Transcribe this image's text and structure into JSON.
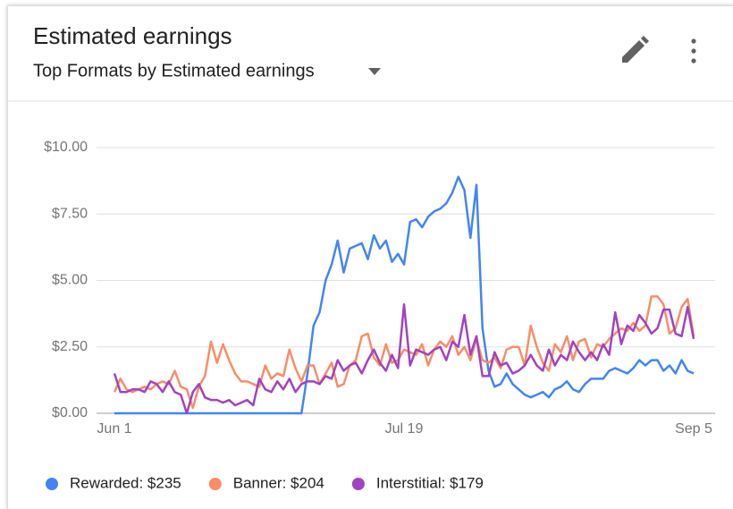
{
  "chart_data": {
    "type": "line",
    "title": "Estimated earnings",
    "subtitle": "Top Formats by Estimated earnings",
    "categories": [
      "Jun 1",
      null,
      null,
      null,
      null,
      null,
      null,
      null,
      null,
      null,
      null,
      null,
      null,
      null,
      null,
      null,
      null,
      null,
      null,
      null,
      null,
      null,
      null,
      null,
      null,
      null,
      null,
      null,
      null,
      null,
      null,
      null,
      null,
      null,
      null,
      null,
      null,
      null,
      null,
      null,
      null,
      null,
      null,
      null,
      null,
      null,
      null,
      null,
      "Jul 19",
      null,
      null,
      null,
      null,
      null,
      null,
      null,
      null,
      null,
      null,
      null,
      null,
      null,
      null,
      null,
      null,
      null,
      null,
      null,
      null,
      null,
      null,
      null,
      null,
      null,
      null,
      null,
      null,
      null,
      null,
      null,
      null,
      null,
      null,
      null,
      null,
      null,
      null,
      null,
      null,
      null,
      null,
      null,
      null,
      null,
      null,
      null,
      "Sep 5"
    ],
    "series": [
      {
        "name": "Rewarded: $235",
        "color": "#4285f4",
        "values": [
          0,
          0,
          0,
          0,
          0,
          0,
          0,
          0,
          0,
          0,
          0,
          0,
          0,
          0,
          0,
          0,
          0,
          0,
          0,
          0,
          0,
          0,
          0,
          0,
          0,
          0,
          0,
          0,
          0,
          0,
          0,
          0,
          1.5,
          3.3,
          3.8,
          5.0,
          5.6,
          6.5,
          5.3,
          6.2,
          6.3,
          6.4,
          5.8,
          6.7,
          6.2,
          6.5,
          5.7,
          6.0,
          5.6,
          7.2,
          7.3,
          7.0,
          7.4,
          7.6,
          7.7,
          7.9,
          8.3,
          8.9,
          8.4,
          6.6,
          8.6,
          3.2,
          1.6,
          1.0,
          1.1,
          1.5,
          1.1,
          0.9,
          0.7,
          0.6,
          0.7,
          0.8,
          0.6,
          0.9,
          1.0,
          1.2,
          0.9,
          0.8,
          1.1,
          1.3,
          1.3,
          1.3,
          1.6,
          1.7,
          1.6,
          1.5,
          1.7,
          2.0,
          1.8,
          2.0,
          2.0,
          1.6,
          1.8,
          1.5,
          2.0,
          1.6,
          1.5
        ]
      },
      {
        "name": "Banner: $204",
        "color": "#f88d67",
        "values": [
          0.8,
          1.3,
          0.9,
          0.8,
          0.9,
          1.0,
          0.9,
          1.1,
          1.2,
          1.1,
          1.6,
          1.0,
          0.9,
          0.2,
          1.0,
          1.4,
          2.7,
          1.9,
          2.6,
          2.0,
          1.5,
          1.2,
          1.2,
          1.1,
          1.0,
          1.8,
          1.3,
          1.5,
          1.4,
          2.4,
          1.7,
          1.2,
          1.8,
          1.8,
          1.1,
          1.5,
          1.9,
          1.0,
          1.1,
          1.8,
          2.0,
          2.9,
          3.0,
          2.1,
          1.8,
          2.6,
          1.9,
          2.0,
          2.4,
          2.3,
          2.2,
          2.6,
          1.8,
          2.4,
          2.7,
          2.5,
          2.9,
          2.2,
          2.5,
          2.0,
          2.8,
          2.0,
          1.9,
          2.1,
          1.7,
          2.4,
          2.5,
          2.5,
          1.8,
          3.3,
          2.5,
          1.9,
          1.6,
          2.6,
          2.3,
          2.9,
          2.0,
          2.7,
          2.8,
          2.1,
          2.6,
          2.5,
          2.8,
          3.0,
          3.2,
          3.1,
          3.4,
          3.1,
          3.3,
          4.4,
          4.4,
          4.1,
          3.0,
          3.2,
          4.0,
          4.3,
          2.9
        ]
      },
      {
        "name": "Interstitial: $179",
        "color": "#a142c0",
        "values": [
          1.5,
          0.8,
          0.8,
          0.9,
          0.9,
          0.8,
          1.2,
          1.1,
          0.8,
          1.2,
          0.8,
          0.7,
          0.0,
          0.8,
          1.1,
          0.6,
          0.5,
          0.5,
          0.4,
          0.5,
          0.3,
          0.4,
          0.5,
          0.3,
          1.3,
          0.9,
          0.8,
          1.2,
          0.9,
          1.3,
          0.8,
          1.1,
          1.2,
          1.2,
          1.1,
          1.4,
          1.3,
          2.0,
          1.6,
          1.8,
          1.9,
          1.5,
          2.0,
          2.4,
          1.9,
          1.6,
          2.2,
          1.7,
          4.1,
          1.8,
          2.4,
          2.3,
          2.2,
          2.4,
          2.5,
          2.0,
          2.7,
          2.5,
          3.7,
          2.2,
          2.9,
          1.4,
          1.4,
          2.3,
          1.8,
          1.9,
          1.5,
          1.6,
          1.8,
          2.2,
          1.8,
          1.6,
          2.4,
          1.8,
          2.2,
          2.0,
          2.7,
          2.3,
          2.0,
          2.3,
          2.0,
          2.6,
          2.2,
          3.8,
          2.6,
          3.3,
          3.1,
          3.7,
          3.4,
          3.0,
          3.2,
          3.9,
          3.9,
          3.0,
          2.9,
          4.0,
          2.8
        ]
      }
    ],
    "ylim": [
      0,
      10
    ],
    "yticks": [
      {
        "value": 0,
        "label": "$0.00"
      },
      {
        "value": 2.5,
        "label": "$2.50"
      },
      {
        "value": 5,
        "label": "$5.00"
      },
      {
        "value": 7.5,
        "label": "$7.50"
      },
      {
        "value": 10,
        "label": "$10.00"
      }
    ],
    "grid": true,
    "legend": "bottom"
  }
}
